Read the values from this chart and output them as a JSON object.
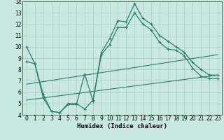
{
  "xlabel": "Humidex (Indice chaleur)",
  "xlim": [
    -0.5,
    23.5
  ],
  "ylim": [
    4,
    14
  ],
  "yticks": [
    4,
    5,
    6,
    7,
    8,
    9,
    10,
    11,
    12,
    13,
    14
  ],
  "xticks": [
    0,
    1,
    2,
    3,
    4,
    5,
    6,
    7,
    8,
    9,
    10,
    11,
    12,
    13,
    14,
    15,
    16,
    17,
    18,
    19,
    20,
    21,
    22,
    23
  ],
  "line_color": "#2e7d6e",
  "bg_color": "#c8e8e0",
  "grid_color": "#a8ccc4",
  "line1_x": [
    0,
    1,
    2,
    3,
    4,
    5,
    6,
    7,
    8,
    9,
    10,
    11,
    12,
    13,
    14,
    15,
    16,
    17,
    18,
    19,
    20,
    21,
    22,
    23
  ],
  "line1_y": [
    10.0,
    8.5,
    5.5,
    4.3,
    4.2,
    5.0,
    5.0,
    4.5,
    5.3,
    9.5,
    10.7,
    12.3,
    12.2,
    13.8,
    12.5,
    12.0,
    11.0,
    10.5,
    10.0,
    9.5,
    8.6,
    8.0,
    7.5,
    7.5
  ],
  "line2_x": [
    0,
    1,
    2,
    3,
    4,
    5,
    6,
    7,
    8,
    9,
    10,
    11,
    12,
    13,
    14,
    15,
    16,
    17,
    18,
    19,
    20,
    21,
    22,
    23
  ],
  "line2_y": [
    8.7,
    8.5,
    5.8,
    4.3,
    4.2,
    4.9,
    4.9,
    7.6,
    5.2,
    9.3,
    10.2,
    11.7,
    11.7,
    13.0,
    12.0,
    11.5,
    10.4,
    9.8,
    9.7,
    9.2,
    8.1,
    7.4,
    7.2,
    7.2
  ],
  "line3_x": [
    0,
    23
  ],
  "line3_y": [
    5.3,
    7.5
  ],
  "line4_x": [
    0,
    23
  ],
  "line4_y": [
    6.7,
    9.3
  ]
}
